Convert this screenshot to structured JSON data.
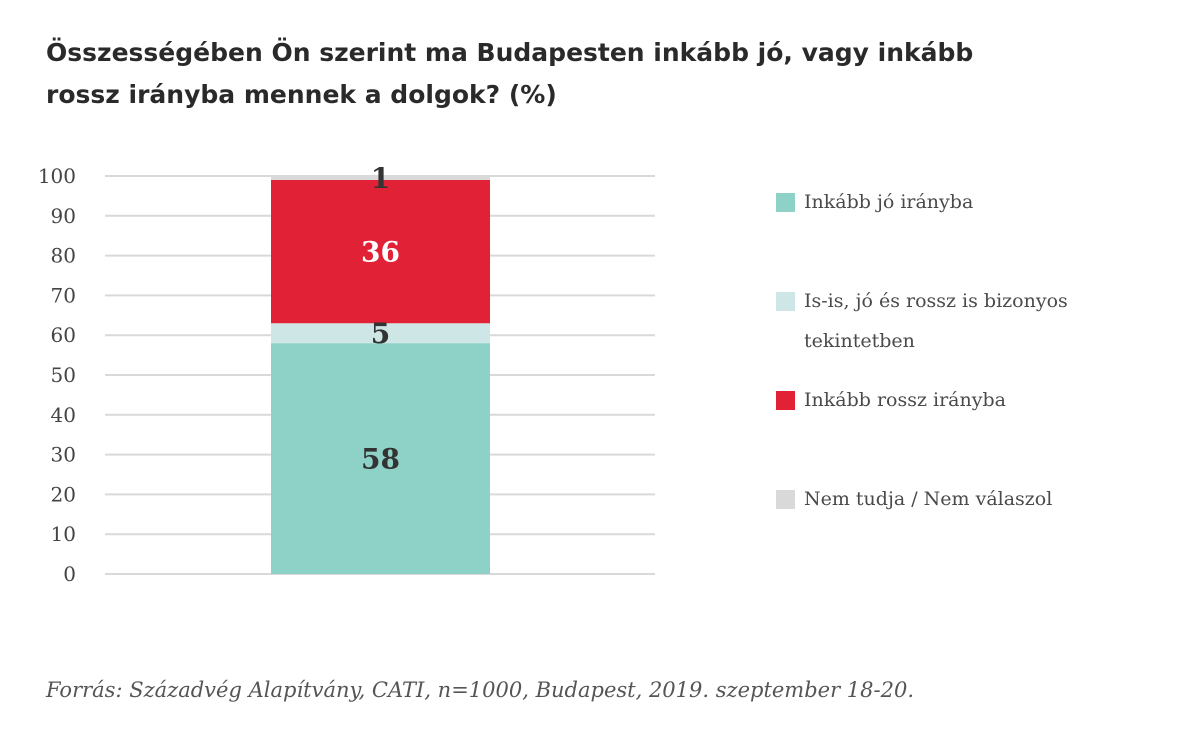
{
  "chart_data": {
    "type": "bar",
    "stacked": true,
    "title_lines": [
      "Összességében Ön szerint ma Budapesten inkább jó, vagy inkább",
      "rossz irányba mennek a dolgok? (%)"
    ],
    "xlabel": "",
    "ylabel": "",
    "ylim": [
      0,
      100
    ],
    "yticks": [
      "0",
      "10",
      "20",
      "30",
      "40",
      "50",
      "60",
      "70",
      "80",
      "90",
      "100"
    ],
    "grid": true,
    "legend_position": "right",
    "categories": [
      ""
    ],
    "series": [
      {
        "name": "Inkább jó irányba",
        "values": [
          58
        ],
        "color": "#8ed1c7",
        "label_color": "#333333"
      },
      {
        "name": "Is-is, jó és rossz is bizonyos tekintetben",
        "values": [
          5
        ],
        "color": "#cfe6e6",
        "label_color": "#333333"
      },
      {
        "name": "Inkább rossz irányba",
        "values": [
          36
        ],
        "color": "#e12236",
        "label_color": "#ffffff"
      },
      {
        "name": "Nem tudja / Nem válaszol",
        "values": [
          1
        ],
        "color": "#d9d9d9",
        "label_color": "#333333"
      }
    ],
    "data_labels": [
      "58",
      "5",
      "36",
      "1"
    ]
  },
  "source": "Forrás: Századvég Alapítvány, CATI, n=1000, Budapest, 2019. szeptember 18-20."
}
